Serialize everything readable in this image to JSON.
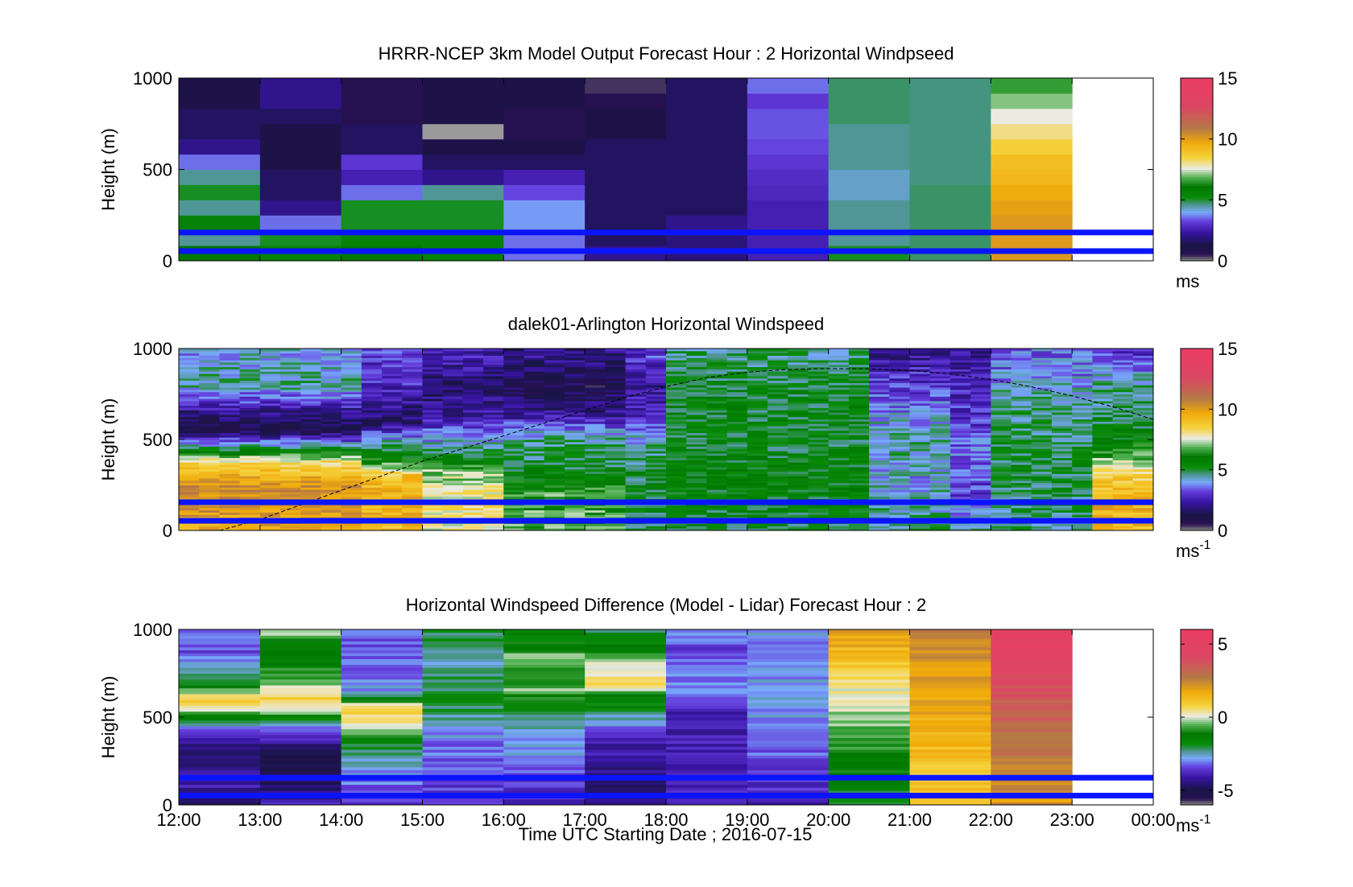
{
  "figure": {
    "xlabel": "Time UTC  Starting Date ; 2016-07-15",
    "x_ticks": [
      "12:00",
      "13:00",
      "14:00",
      "15:00",
      "16:00",
      "17:00",
      "18:00",
      "19:00",
      "20:00",
      "21:00",
      "22:00",
      "23:00",
      "00:00"
    ]
  },
  "chart_data": [
    {
      "type": "heatmap",
      "title": "HRRR-NCEP 3km Model Output   Forecast Hour : 2 Horizontal Windpseed",
      "ylabel": "Height (m)",
      "ylim": [
        0,
        1000
      ],
      "y_ticks": [
        "0",
        "500",
        "1000"
      ],
      "colorbar": {
        "range": [
          0,
          15
        ],
        "ticks": [
          "0",
          "5",
          "10",
          "15"
        ],
        "unit": "ms",
        "unit_sup": ""
      },
      "reference_lines_m": [
        53,
        155
      ],
      "columns": [
        {
          "time": "12:00",
          "values": [
            6.0,
            4.5,
            5.5,
            4.5,
            5.0,
            4.5,
            3.5,
            2.0,
            1.5,
            1.5,
            1.0,
            1.0
          ]
        },
        {
          "time": "13:00",
          "values": [
            5.5,
            5.0,
            3.5,
            2.0,
            1.5,
            1.5,
            1.0,
            1.0,
            1.0,
            1.5,
            2.0,
            2.0
          ]
        },
        {
          "time": "14:00",
          "values": [
            6.0,
            5.5,
            5.0,
            5.0,
            3.5,
            2.5,
            3.0,
            1.5,
            1.5,
            0.5,
            0.5,
            0.5
          ]
        },
        {
          "time": "15:00",
          "values": [
            5.5,
            5.5,
            5.0,
            5.0,
            4.5,
            2.0,
            1.5,
            1.0,
            "NaN",
            1.0,
            1.0,
            1.0
          ]
        },
        {
          "time": "16:00",
          "values": [
            3.5,
            3.5,
            3.8,
            3.8,
            3.2,
            2.5,
            1.5,
            1.0,
            0.5,
            0.5,
            1.0,
            1.0
          ]
        },
        {
          "time": "17:00",
          "values": [
            2.0,
            1.5,
            1.5,
            1.5,
            1.5,
            1.5,
            1.5,
            1.5,
            1.0,
            1.0,
            0.5,
            0.3
          ]
        },
        {
          "time": "18:00",
          "values": [
            1.8,
            1.8,
            2.0,
            1.5,
            1.5,
            1.5,
            1.5,
            1.5,
            1.5,
            1.5,
            1.5,
            1.5
          ]
        },
        {
          "time": "19:00",
          "values": [
            2.5,
            2.5,
            2.5,
            2.5,
            2.7,
            2.8,
            3.0,
            3.2,
            3.3,
            3.3,
            3.0,
            3.5
          ]
        },
        {
          "time": "20:00",
          "values": [
            5.0,
            4.5,
            4.5,
            4.5,
            4.2,
            4.2,
            4.5,
            4.5,
            4.5,
            4.7,
            4.7,
            4.7
          ]
        },
        {
          "time": "21:00",
          "values": [
            4.7,
            4.7,
            4.7,
            4.7,
            4.7,
            4.6,
            4.6,
            4.6,
            4.6,
            4.6,
            4.6,
            4.6
          ]
        },
        {
          "time": "22:00",
          "values": [
            10.0,
            10.0,
            10.0,
            9.8,
            9.5,
            9.2,
            9.0,
            8.5,
            8.0,
            7.5,
            7.0,
            6.5
          ]
        },
        {
          "time": "23:00",
          "values": []
        }
      ]
    },
    {
      "type": "heatmap",
      "title": "dalek01-Arlington  Horizontal Windspeed",
      "ylabel": "Height (m)",
      "ylim": [
        0,
        1000
      ],
      "y_ticks": [
        "0",
        "500",
        "1000"
      ],
      "colorbar": {
        "range": [
          0,
          15
        ],
        "ticks": [
          "0",
          "5",
          "10",
          "15"
        ],
        "unit": "ms",
        "unit_sup": "-1"
      },
      "reference_lines_m": [
        53,
        155
      ],
      "profile_line": {
        "x_hours": [
          12.5,
          13.0,
          13.5,
          14.0,
          14.5,
          15.0,
          15.5,
          16.0,
          16.5,
          17.0,
          17.5,
          18.0,
          18.5,
          19.0,
          19.5,
          20.0,
          20.5,
          21.0,
          21.5,
          22.0,
          22.5,
          23.0,
          23.5,
          24.0
        ],
        "height_m": [
          0,
          60,
          140,
          220,
          300,
          380,
          450,
          520,
          590,
          660,
          730,
          790,
          840,
          870,
          885,
          890,
          888,
          880,
          860,
          830,
          790,
          740,
          680,
          610
        ]
      },
      "profiles": [
        {
          "from": 12.0,
          "to": 14.3,
          "anchors": [
            [
              0,
              9.5
            ],
            [
              100,
              10.0
            ],
            [
              250,
              10.2
            ],
            [
              380,
              8.0
            ],
            [
              450,
              5.0
            ],
            [
              550,
              1.0
            ],
            [
              650,
              2.0
            ],
            [
              800,
              4.5
            ],
            [
              950,
              4.0
            ]
          ]
        },
        {
          "from": 14.3,
          "to": 15.0,
          "anchors": [
            [
              0,
              9.0
            ],
            [
              150,
              9.5
            ],
            [
              300,
              9.0
            ],
            [
              380,
              6.0
            ],
            [
              480,
              4.5
            ],
            [
              600,
              1.5
            ],
            [
              750,
              2.5
            ],
            [
              950,
              3.0
            ]
          ]
        },
        {
          "from": 15.0,
          "to": 16.0,
          "anchors": [
            [
              0,
              7.5
            ],
            [
              150,
              8.0
            ],
            [
              320,
              7.0
            ],
            [
              420,
              5.0
            ],
            [
              600,
              2.5
            ],
            [
              800,
              1.5
            ],
            [
              950,
              2.5
            ]
          ]
        },
        {
          "from": 16.0,
          "to": 17.5,
          "anchors": [
            [
              0,
              6.5
            ],
            [
              200,
              6.5
            ],
            [
              350,
              5.0
            ],
            [
              500,
              4.5
            ],
            [
              650,
              2.0
            ],
            [
              800,
              1.0
            ],
            [
              950,
              2.0
            ]
          ]
        },
        {
          "from": 17.5,
          "to": 18.0,
          "anchors": [
            [
              0,
              5.0
            ],
            [
              300,
              5.0
            ],
            [
              450,
              4.5
            ],
            [
              600,
              3.0
            ],
            [
              800,
              2.0
            ],
            [
              950,
              3.0
            ]
          ]
        },
        {
          "from": 18.0,
          "to": 20.5,
          "anchors": [
            [
              0,
              5.0
            ],
            [
              300,
              5.5
            ],
            [
              500,
              5.0
            ],
            [
              700,
              5.2
            ],
            [
              900,
              4.8
            ],
            [
              1000,
              4.5
            ]
          ]
        },
        {
          "from": 20.5,
          "to": 21.5,
          "anchors": [
            [
              0,
              4.5
            ],
            [
              300,
              4.0
            ],
            [
              500,
              4.5
            ],
            [
              700,
              3.5
            ],
            [
              900,
              2.5
            ],
            [
              1000,
              2.0
            ]
          ]
        },
        {
          "from": 21.5,
          "to": 22.0,
          "anchors": [
            [
              0,
              4.5
            ],
            [
              200,
              3.0
            ],
            [
              400,
              3.5
            ],
            [
              600,
              3.0
            ],
            [
              800,
              2.5
            ],
            [
              1000,
              2.0
            ]
          ]
        },
        {
          "from": 22.0,
          "to": 23.3,
          "anchors": [
            [
              0,
              4.5
            ],
            [
              300,
              5.0
            ],
            [
              500,
              4.8
            ],
            [
              700,
              4.5
            ],
            [
              900,
              3.5
            ],
            [
              1000,
              3.5
            ]
          ]
        },
        {
          "from": 23.3,
          "to": 24.0,
          "anchors": [
            [
              0,
              9.0
            ],
            [
              150,
              9.5
            ],
            [
              300,
              8.5
            ],
            [
              450,
              6.0
            ],
            [
              600,
              5.0
            ],
            [
              800,
              4.5
            ],
            [
              950,
              3.0
            ]
          ]
        }
      ]
    },
    {
      "type": "heatmap",
      "title": "Horizontal Windspeed Difference (Model - Lidar) Forecast Hour : 2",
      "ylabel": "Height (m)",
      "ylim": [
        0,
        1000
      ],
      "y_ticks": [
        "0",
        "500",
        "1000"
      ],
      "colorbar": {
        "range": [
          -6,
          6
        ],
        "ticks": [
          "-5",
          "0",
          "5"
        ],
        "unit": "ms",
        "unit_sup": "-1"
      },
      "reference_lines_m": [
        53,
        155
      ],
      "columns": [
        {
          "time": "12:00",
          "anchors": [
            [
              0,
              -4.5
            ],
            [
              150,
              -4.0
            ],
            [
              300,
              -5.0
            ],
            [
              450,
              -3.0
            ],
            [
              550,
              0.0
            ],
            [
              600,
              1.0
            ],
            [
              700,
              -2.0
            ],
            [
              900,
              -3.5
            ],
            [
              1000,
              -3.0
            ]
          ]
        },
        {
          "time": "13:00",
          "anchors": [
            [
              0,
              -4.0
            ],
            [
              150,
              -5.0
            ],
            [
              300,
              -5.0
            ],
            [
              450,
              -3.0
            ],
            [
              550,
              0.0
            ],
            [
              620,
              0.8
            ],
            [
              700,
              -0.5
            ],
            [
              900,
              -1.5
            ],
            [
              1000,
              0.0
            ]
          ]
        },
        {
          "time": "14:00",
          "anchors": [
            [
              0,
              -3.5
            ],
            [
              200,
              -3.0
            ],
            [
              350,
              -2.0
            ],
            [
              450,
              0.0
            ],
            [
              550,
              1.0
            ],
            [
              650,
              -3.0
            ],
            [
              900,
              -3.5
            ],
            [
              1000,
              -3.0
            ]
          ]
        },
        {
          "time": "15:00",
          "anchors": [
            [
              0,
              -3.5
            ],
            [
              200,
              -3.5
            ],
            [
              400,
              -3.0
            ],
            [
              600,
              -2.0
            ],
            [
              800,
              -2.5
            ],
            [
              1000,
              -2.0
            ]
          ]
        },
        {
          "time": "16:00",
          "anchors": [
            [
              0,
              -4.0
            ],
            [
              150,
              -3.5
            ],
            [
              300,
              -3.0
            ],
            [
              500,
              -2.5
            ],
            [
              650,
              -0.5
            ],
            [
              750,
              -1.0
            ],
            [
              850,
              -0.5
            ],
            [
              1000,
              -2.0
            ]
          ]
        },
        {
          "time": "17:00",
          "anchors": [
            [
              0,
              -4.5
            ],
            [
              200,
              -4.5
            ],
            [
              350,
              -4.0
            ],
            [
              450,
              -3.0
            ],
            [
              600,
              -1.5
            ],
            [
              700,
              0.5
            ],
            [
              800,
              0.0
            ],
            [
              900,
              -1.5
            ],
            [
              1000,
              -2.0
            ]
          ]
        },
        {
          "time": "18:00",
          "anchors": [
            [
              0,
              -4.0
            ],
            [
              200,
              -4.0
            ],
            [
              350,
              -4.0
            ],
            [
              500,
              -4.0
            ],
            [
              700,
              -3.0
            ],
            [
              900,
              -3.5
            ],
            [
              1000,
              -3.0
            ]
          ]
        },
        {
          "time": "19:00",
          "anchors": [
            [
              0,
              -4.0
            ],
            [
              200,
              -3.5
            ],
            [
              400,
              -3.0
            ],
            [
              600,
              -3.0
            ],
            [
              800,
              -3.0
            ],
            [
              1000,
              -3.0
            ]
          ]
        },
        {
          "time": "20:00",
          "anchors": [
            [
              0,
              -2.0
            ],
            [
              150,
              -1.5
            ],
            [
              300,
              -1.0
            ],
            [
              450,
              -0.5
            ],
            [
              600,
              0.0
            ],
            [
              750,
              0.5
            ],
            [
              900,
              1.5
            ],
            [
              1000,
              2.0
            ]
          ]
        },
        {
          "time": "21:00",
          "anchors": [
            [
              0,
              1.0
            ],
            [
              200,
              1.0
            ],
            [
              400,
              1.5
            ],
            [
              600,
              1.8
            ],
            [
              800,
              2.0
            ],
            [
              1000,
              2.5
            ]
          ]
        },
        {
          "time": "22:00",
          "anchors": [
            [
              0,
              2.0
            ],
            [
              200,
              2.5
            ],
            [
              400,
              3.0
            ],
            [
              600,
              3.5
            ],
            [
              800,
              4.5
            ],
            [
              1000,
              5.0
            ]
          ]
        },
        {
          "time": "23:00",
          "anchors": []
        }
      ]
    }
  ],
  "colors": {
    "reference_line": "#0a14ff",
    "profile_line": "#000000",
    "nan": "#9a9a9a"
  }
}
